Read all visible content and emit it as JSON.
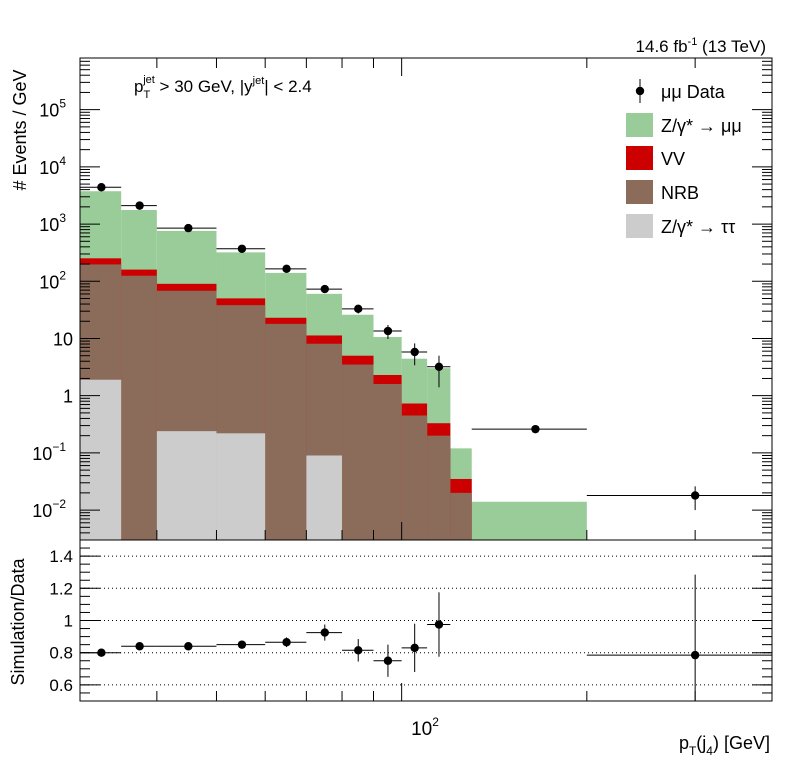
{
  "header": {
    "lumi_main": "14.6 fb",
    "lumi_exp": "-1",
    "lumi_tail": " (13 TeV)"
  },
  "cuts": {
    "p": "p",
    "p_sub": "T",
    "p_sup": "jet",
    "mid": " > 30 GeV,  |y",
    "y_sup": "jet",
    "tail": "| < 2.4"
  },
  "axes": {
    "ylabel_top": "# Events / GeV",
    "ylabel_bottom": "Simulation/Data",
    "xlabel_main": "p",
    "xlabel_sub1": "T",
    "xlabel_mid": "(j",
    "xlabel_sub2": "4",
    "xlabel_tail": ") [GeV]",
    "x_tick": "10",
    "x_tick_exp": "2",
    "y_ticks": [
      {
        "base": "10",
        "exp": "−2"
      },
      {
        "base": "10",
        "exp": "−1"
      },
      {
        "base": "1",
        "exp": ""
      },
      {
        "base": "10",
        "exp": ""
      },
      {
        "base": "10",
        "exp": "2"
      },
      {
        "base": "10",
        "exp": "3"
      },
      {
        "base": "10",
        "exp": "4"
      },
      {
        "base": "10",
        "exp": "5"
      }
    ],
    "ratio_ticks": [
      "0.6",
      "0.8",
      "1",
      "1.2",
      "1.4"
    ]
  },
  "legend": [
    {
      "key": "data",
      "label": "μμ Data",
      "color": "#000000",
      "kind": "marker"
    },
    {
      "key": "z_mumu",
      "label": "Z/γ* → μμ",
      "color": "#99cc99",
      "kind": "box"
    },
    {
      "key": "vv",
      "label": "VV",
      "color": "#cc0000",
      "kind": "box"
    },
    {
      "key": "nrb",
      "label": "NRB",
      "color": "#8b6b5a",
      "kind": "box"
    },
    {
      "key": "z_tautau",
      "label": "Z/γ* → ττ",
      "color": "#cccccc",
      "kind": "box"
    }
  ],
  "chart_data": {
    "type": "bar",
    "subtype": "stacked-histogram",
    "x_scale": "log",
    "y_scale": "log",
    "xlim": [
      30,
      400
    ],
    "ylim": [
      0.003,
      800000
    ],
    "ratio_ylim": [
      0.5,
      1.5
    ],
    "bin_edges": [
      30,
      35,
      40,
      50,
      60,
      70,
      80,
      90,
      100,
      110,
      120,
      130,
      200,
      400
    ],
    "stack": [
      {
        "key": "z_tautau",
        "name": "Z/γ* → ττ",
        "values": [
          1.9,
          0,
          0.24,
          0.22,
          0,
          0.09,
          0,
          0,
          0,
          0,
          0,
          0,
          0
        ]
      },
      {
        "key": "nrb",
        "name": "NRB",
        "values": [
          195,
          125,
          68,
          38,
          18,
          8,
          3.5,
          1.6,
          0.45,
          0.2,
          0.02,
          0,
          0
        ]
      },
      {
        "key": "vv",
        "name": "VV",
        "values": [
          55,
          35,
          22,
          12,
          5,
          3.2,
          1.5,
          0.7,
          0.28,
          0.13,
          0.015,
          0,
          0
        ]
      },
      {
        "key": "z_mumu",
        "name": "Z/γ* → μμ",
        "values": [
          3500,
          1600,
          670,
          270,
          117,
          49,
          21,
          8.3,
          3.7,
          2.7,
          0.085,
          0.014,
          0
        ]
      }
    ],
    "data": {
      "name": "μμ Data",
      "x": [
        32.5,
        37.5,
        45,
        55,
        65,
        75,
        85,
        95,
        105,
        115,
        165,
        300
      ],
      "x_low": [
        30,
        35,
        40,
        50,
        60,
        70,
        80,
        90,
        100,
        110,
        130,
        200
      ],
      "x_high": [
        35,
        40,
        50,
        60,
        70,
        80,
        90,
        100,
        110,
        120,
        200,
        400
      ],
      "y": [
        4400,
        2100,
        850,
        370,
        165,
        73,
        33,
        13.5,
        5.8,
        3.2,
        0.26,
        0.018
      ],
      "y_err": [
        90,
        60,
        30,
        19,
        13,
        8.5,
        5.7,
        3.7,
        2.4,
        1.8,
        0.03,
        0.008
      ]
    },
    "ratio": {
      "x": [
        32.5,
        37.5,
        45,
        55,
        65,
        75,
        85,
        95,
        105,
        115,
        300
      ],
      "x_low": [
        30,
        35,
        40,
        50,
        60,
        70,
        80,
        90,
        100,
        110,
        200
      ],
      "x_high": [
        35,
        40,
        50,
        60,
        70,
        80,
        90,
        100,
        110,
        120,
        400
      ],
      "y": [
        0.8,
        0.84,
        0.84,
        0.85,
        0.865,
        0.925,
        0.815,
        0.75,
        0.83,
        0.975,
        0.785
      ],
      "y_err": [
        0.015,
        0.015,
        0.02,
        0.025,
        0.03,
        0.05,
        0.07,
        0.1,
        0.15,
        0.2,
        0.5
      ]
    }
  }
}
